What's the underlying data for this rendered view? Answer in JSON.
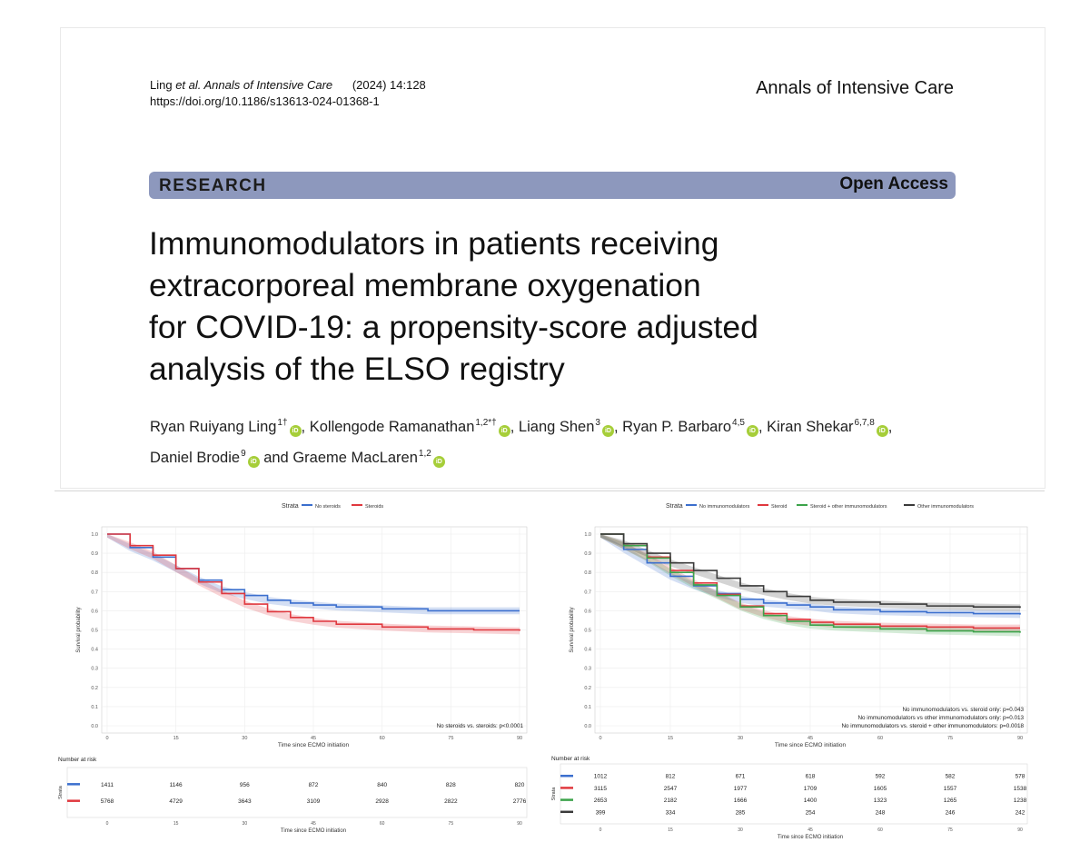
{
  "header": {
    "citation_author": "Ling",
    "citation_etal": "et al. Annals of Intensive Care",
    "citation_year_vol": "(2024) 14:128",
    "doi": "https://doi.org/10.1186/s13613-024-01368-1",
    "journal": "Annals of Intensive Care"
  },
  "banner": {
    "section": "RESEARCH",
    "access": "Open Access"
  },
  "title_lines": [
    "Immunomodulators in patients receiving",
    "extracorporeal membrane oxygenation",
    "for COVID-19: a propensity-score adjusted",
    "analysis of the ELSO registry"
  ],
  "authors": [
    {
      "name": "Ryan Ruiyang Ling",
      "sup": "1†",
      "sep": ","
    },
    {
      "name": "Kollengode Ramanathan",
      "sup": "1,2*†",
      "sep": ","
    },
    {
      "name": "Liang Shen",
      "sup": "3",
      "sep": ","
    },
    {
      "name": "Ryan P. Barbaro",
      "sup": "4,5",
      "sep": ","
    },
    {
      "name": "Kiran Shekar",
      "sup": "6,7,8",
      "sep": ","
    },
    {
      "name": "Daniel Brodie",
      "sup": "9",
      "sep": " and"
    },
    {
      "name": "Graeme MacLaren",
      "sup": "1,2",
      "sep": ""
    }
  ],
  "orcid_label": "iD",
  "chart_data": [
    {
      "type": "line",
      "subtype": "kaplan-meier",
      "legend_title": "Strata",
      "legend_position": "top",
      "xlabel": "Time since ECMO initiation",
      "ylabel": "Survival probability",
      "xlim": [
        0,
        90
      ],
      "ylim": [
        0,
        1.0
      ],
      "x_ticks": [
        0,
        15,
        30,
        45,
        60,
        75,
        90
      ],
      "y_ticks": [
        "0.0",
        "0.1",
        "0.2",
        "0.3",
        "0.4",
        "0.5",
        "0.6",
        "0.7",
        "0.8",
        "0.9",
        "1.0"
      ],
      "series": [
        {
          "name": "No steroids",
          "color": "#3b6fce",
          "x": [
            0,
            5,
            10,
            15,
            20,
            25,
            30,
            35,
            40,
            45,
            50,
            60,
            70,
            80,
            90
          ],
          "y": [
            1.0,
            0.93,
            0.88,
            0.82,
            0.76,
            0.71,
            0.68,
            0.655,
            0.64,
            0.63,
            0.62,
            0.61,
            0.6,
            0.6,
            0.6
          ]
        },
        {
          "name": "Steroids",
          "color": "#e0383e",
          "x": [
            0,
            5,
            10,
            15,
            20,
            25,
            30,
            35,
            40,
            45,
            50,
            60,
            70,
            80,
            90
          ],
          "y": [
            1.0,
            0.94,
            0.89,
            0.82,
            0.75,
            0.69,
            0.635,
            0.595,
            0.565,
            0.545,
            0.53,
            0.515,
            0.505,
            0.5,
            0.495
          ]
        }
      ],
      "annotation": "No steroids vs. steroids: p<0.0001",
      "risk_table": {
        "title": "Number at risk",
        "axis_label": "Strata",
        "rows": [
          {
            "color": "#3b6fce",
            "values": [
              "1411",
              "1146",
              "956",
              "872",
              "840",
              "828",
              "820"
            ]
          },
          {
            "color": "#e0383e",
            "values": [
              "5768",
              "4729",
              "3643",
              "3109",
              "2928",
              "2822",
              "2776"
            ]
          }
        ]
      }
    },
    {
      "type": "line",
      "subtype": "kaplan-meier",
      "legend_title": "Strata",
      "legend_position": "top",
      "xlabel": "Time since ECMO initiation",
      "ylabel": "Survival probability",
      "xlim": [
        0,
        90
      ],
      "ylim": [
        0,
        1.0
      ],
      "x_ticks": [
        0,
        15,
        30,
        45,
        60,
        75,
        90
      ],
      "y_ticks": [
        "0.0",
        "0.1",
        "0.2",
        "0.3",
        "0.4",
        "0.5",
        "0.6",
        "0.7",
        "0.8",
        "0.9",
        "1.0"
      ],
      "series": [
        {
          "name": "No immunomodulators",
          "color": "#3b6fce",
          "x": [
            0,
            5,
            10,
            15,
            20,
            25,
            30,
            35,
            40,
            45,
            50,
            60,
            70,
            80,
            90
          ],
          "y": [
            1.0,
            0.92,
            0.85,
            0.78,
            0.73,
            0.69,
            0.66,
            0.64,
            0.63,
            0.62,
            0.605,
            0.595,
            0.59,
            0.585,
            0.58
          ]
        },
        {
          "name": "Steroid",
          "color": "#e0383e",
          "x": [
            0,
            5,
            10,
            15,
            20,
            25,
            30,
            35,
            40,
            45,
            50,
            60,
            70,
            80,
            90
          ],
          "y": [
            1.0,
            0.94,
            0.88,
            0.81,
            0.745,
            0.685,
            0.625,
            0.585,
            0.555,
            0.54,
            0.53,
            0.52,
            0.515,
            0.51,
            0.51
          ]
        },
        {
          "name": "Steroid + other immunomodulators",
          "color": "#3ca34a",
          "x": [
            0,
            5,
            10,
            15,
            20,
            25,
            30,
            35,
            40,
            45,
            50,
            60,
            70,
            80,
            90
          ],
          "y": [
            1.0,
            0.94,
            0.875,
            0.8,
            0.735,
            0.68,
            0.62,
            0.575,
            0.545,
            0.525,
            0.515,
            0.505,
            0.495,
            0.49,
            0.485
          ]
        },
        {
          "name": "Other immunomodulators",
          "color": "#3a3a3a",
          "x": [
            0,
            5,
            10,
            15,
            20,
            25,
            30,
            35,
            40,
            45,
            50,
            60,
            70,
            80,
            90
          ],
          "y": [
            1.0,
            0.95,
            0.9,
            0.85,
            0.81,
            0.77,
            0.73,
            0.7,
            0.675,
            0.655,
            0.645,
            0.635,
            0.625,
            0.62,
            0.615
          ]
        }
      ],
      "annotations": [
        "No immunomodulators vs. steroid only: p=0.043",
        "No immunomodulators vs other immunomodulators only: p=0.013",
        "No immunomodulators vs. steroid + other immunomodulators: p=0.0018"
      ],
      "risk_table": {
        "title": "Number at risk",
        "axis_label": "Strata",
        "rows": [
          {
            "color": "#3b6fce",
            "values": [
              "1012",
              "812",
              "671",
              "618",
              "592",
              "582",
              "578"
            ]
          },
          {
            "color": "#e0383e",
            "values": [
              "3115",
              "2547",
              "1977",
              "1709",
              "1605",
              "1557",
              "1538"
            ]
          },
          {
            "color": "#3ca34a",
            "values": [
              "2653",
              "2182",
              "1666",
              "1400",
              "1323",
              "1265",
              "1238"
            ]
          },
          {
            "color": "#3a3a3a",
            "values": [
              "399",
              "334",
              "285",
              "254",
              "248",
              "246",
              "242"
            ]
          }
        ]
      }
    }
  ]
}
